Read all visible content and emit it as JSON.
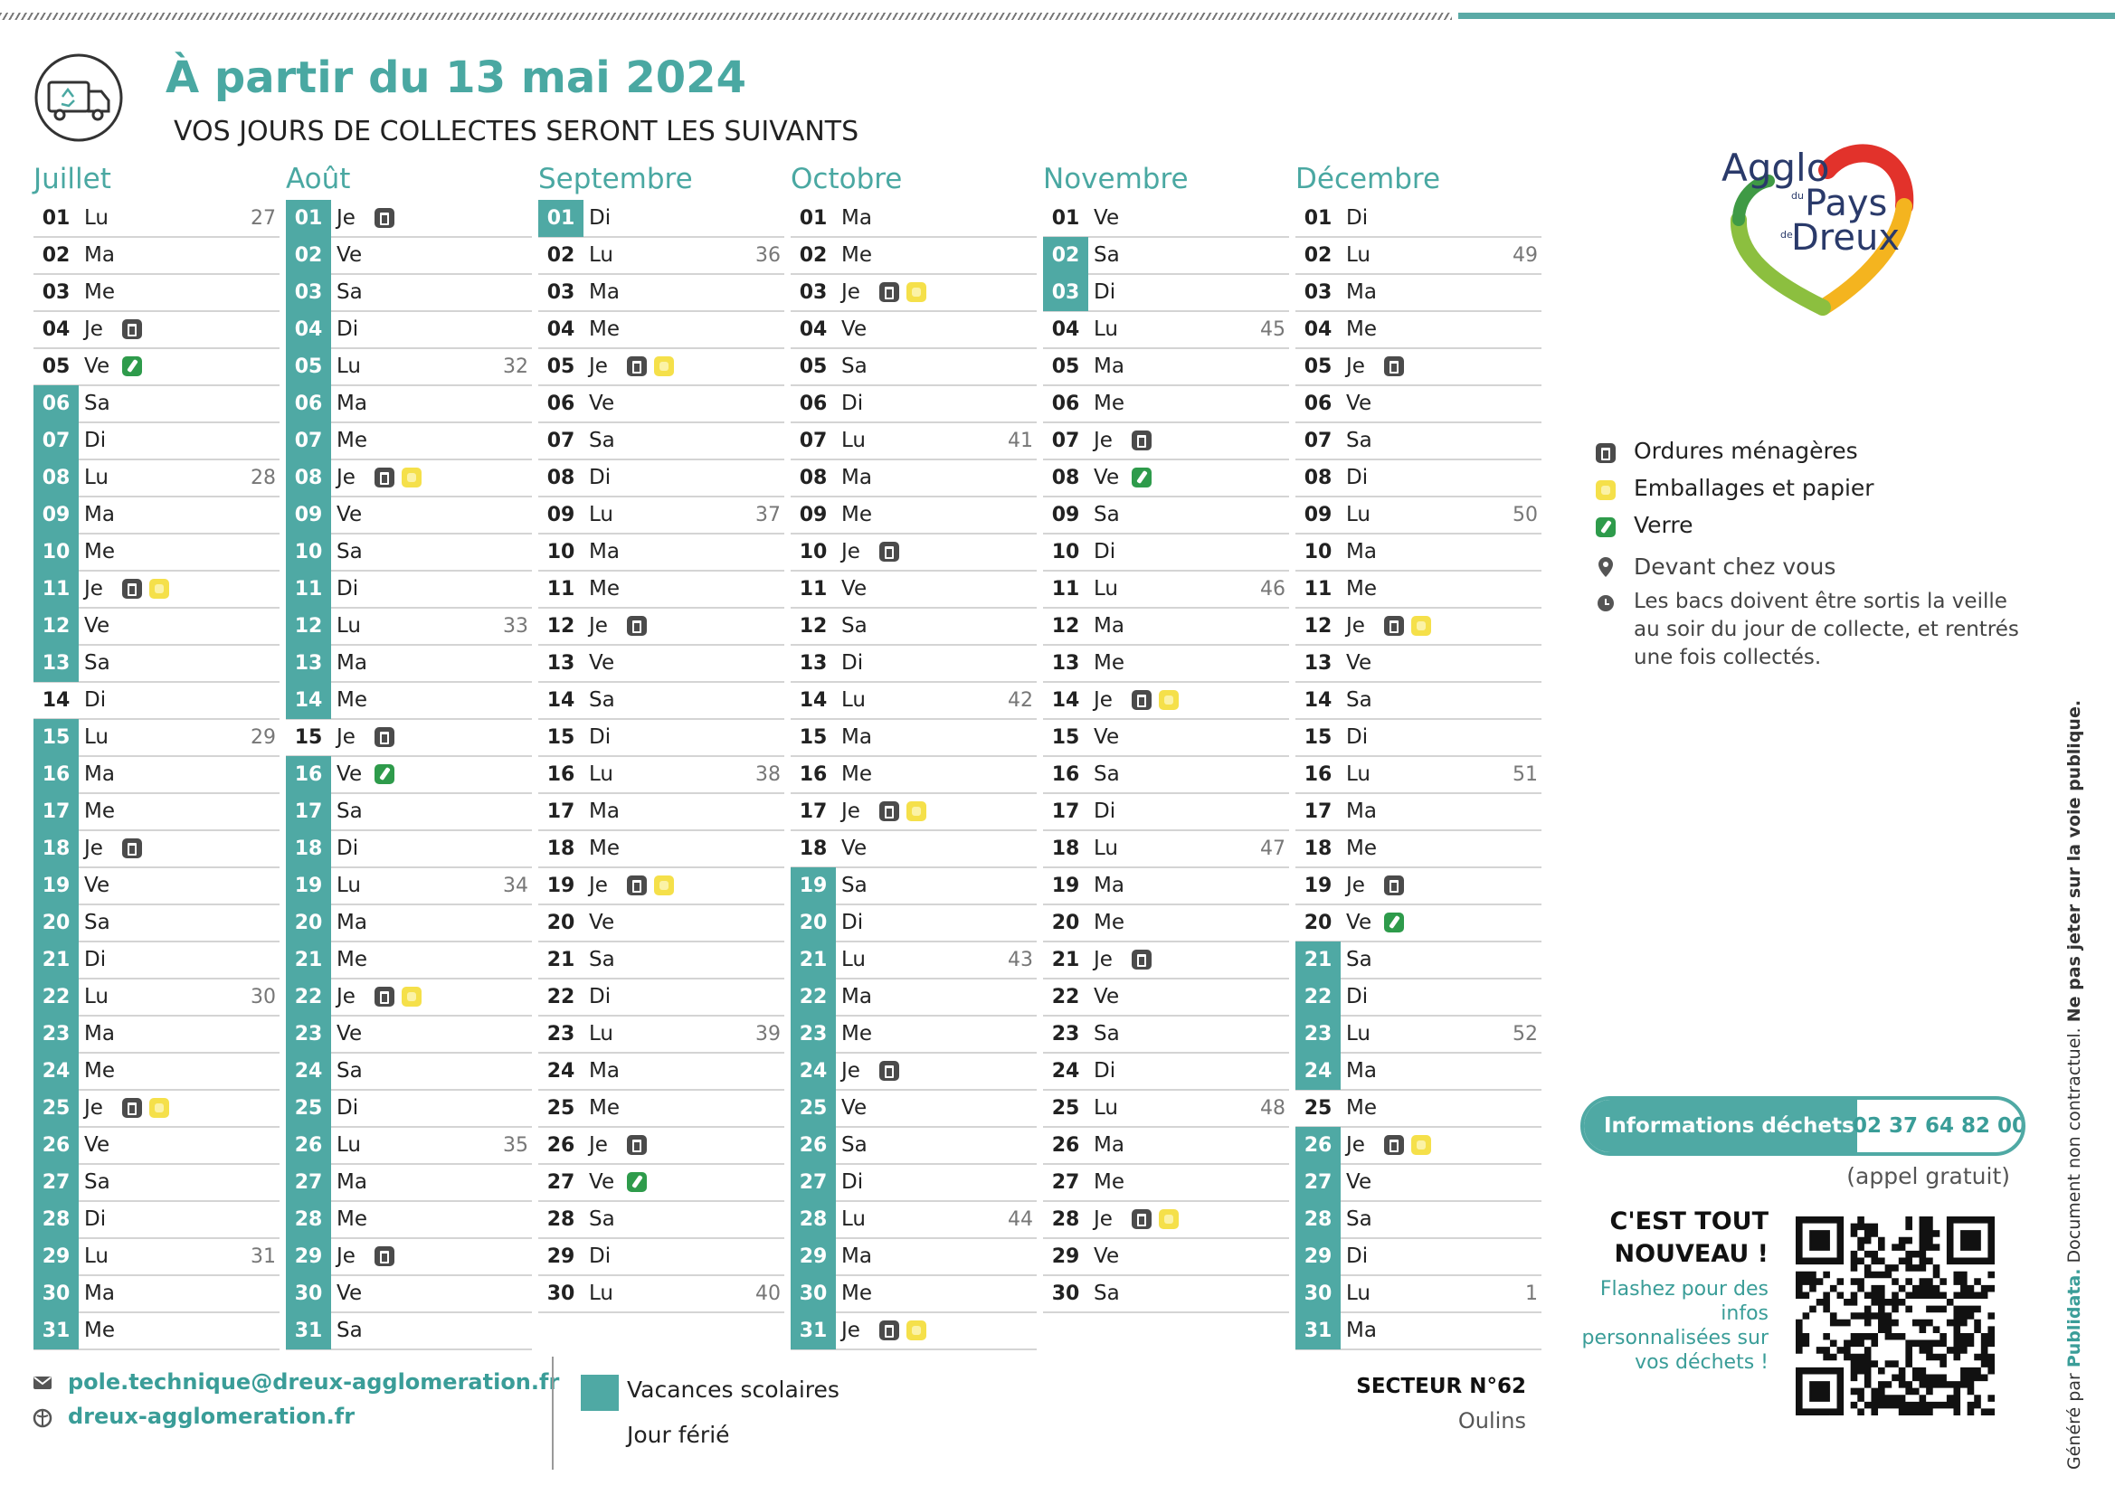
{
  "header": {
    "title": "À partir du 13 mai 2024",
    "subtitle": "VOS JOURS DE COLLECTES SERONT LES SUIVANTS"
  },
  "logo": {
    "agglo": "Agglo",
    "du": "du",
    "pays": "Pays",
    "de": "de",
    "dreux": "Dreux"
  },
  "legend": {
    "items": [
      "Ordures ménagères",
      "Emballages et papier",
      "Verre"
    ],
    "place": "Devant chez vous",
    "note": "Les bacs doivent être sortis la veille au soir du jour de collecte, et rentrés une fois collectés."
  },
  "info": {
    "label": "Informations déchets",
    "phone": "02 37 64 82 00",
    "free": "(appel gratuit)",
    "new": "C'EST TOUT NOUVEAU !",
    "flash": "Flashez pour des infos personnalisées sur vos déchets !"
  },
  "footer": {
    "email": "pole.technique@dreux-agglomeration.fr",
    "web": "dreux-agglomeration.fr",
    "vacances": "Vacances scolaires",
    "ferie": "Jour férié",
    "secteur": "SECTEUR N°62",
    "commune": "Oulins"
  },
  "side": {
    "by": "Généré par",
    "brand": "Publidata.",
    "text": "Document non contractuel.",
    "bold": "Ne pas jeter sur la voie publique."
  },
  "months": [
    {
      "name": "Juillet",
      "days": [
        {
          "n": "01",
          "w": "Lu",
          "wk": 27
        },
        {
          "n": "02",
          "w": "Ma"
        },
        {
          "n": "03",
          "w": "Me"
        },
        {
          "n": "04",
          "w": "Je",
          "c": [
            0
          ]
        },
        {
          "n": "05",
          "w": "Ve",
          "c": [
            2
          ]
        },
        {
          "n": "06",
          "w": "Sa",
          "v": true
        },
        {
          "n": "07",
          "w": "Di",
          "v": true
        },
        {
          "n": "08",
          "w": "Lu",
          "wk": 28,
          "v": true
        },
        {
          "n": "09",
          "w": "Ma",
          "v": true
        },
        {
          "n": "10",
          "w": "Me",
          "v": true
        },
        {
          "n": "11",
          "w": "Je",
          "c": [
            0,
            1
          ],
          "v": true
        },
        {
          "n": "12",
          "w": "Ve",
          "v": true
        },
        {
          "n": "13",
          "w": "Sa",
          "v": true
        },
        {
          "n": "14",
          "w": "Di"
        },
        {
          "n": "15",
          "w": "Lu",
          "wk": 29,
          "v": true
        },
        {
          "n": "16",
          "w": "Ma",
          "v": true
        },
        {
          "n": "17",
          "w": "Me",
          "v": true
        },
        {
          "n": "18",
          "w": "Je",
          "c": [
            0
          ],
          "v": true
        },
        {
          "n": "19",
          "w": "Ve",
          "v": true
        },
        {
          "n": "20",
          "w": "Sa",
          "v": true
        },
        {
          "n": "21",
          "w": "Di",
          "v": true
        },
        {
          "n": "22",
          "w": "Lu",
          "wk": 30,
          "v": true
        },
        {
          "n": "23",
          "w": "Ma",
          "v": true
        },
        {
          "n": "24",
          "w": "Me",
          "v": true
        },
        {
          "n": "25",
          "w": "Je",
          "c": [
            0,
            1
          ],
          "v": true
        },
        {
          "n": "26",
          "w": "Ve",
          "v": true
        },
        {
          "n": "27",
          "w": "Sa",
          "v": true
        },
        {
          "n": "28",
          "w": "Di",
          "v": true
        },
        {
          "n": "29",
          "w": "Lu",
          "wk": 31,
          "v": true
        },
        {
          "n": "30",
          "w": "Ma",
          "v": true
        },
        {
          "n": "31",
          "w": "Me",
          "v": true
        }
      ]
    },
    {
      "name": "Août",
      "days": [
        {
          "n": "01",
          "w": "Je",
          "c": [
            0
          ],
          "v": true
        },
        {
          "n": "02",
          "w": "Ve",
          "v": true
        },
        {
          "n": "03",
          "w": "Sa",
          "v": true
        },
        {
          "n": "04",
          "w": "Di",
          "v": true
        },
        {
          "n": "05",
          "w": "Lu",
          "wk": 32,
          "v": true
        },
        {
          "n": "06",
          "w": "Ma",
          "v": true
        },
        {
          "n": "07",
          "w": "Me",
          "v": true
        },
        {
          "n": "08",
          "w": "Je",
          "c": [
            0,
            1
          ],
          "v": true
        },
        {
          "n": "09",
          "w": "Ve",
          "v": true
        },
        {
          "n": "10",
          "w": "Sa",
          "v": true
        },
        {
          "n": "11",
          "w": "Di",
          "v": true
        },
        {
          "n": "12",
          "w": "Lu",
          "wk": 33,
          "v": true
        },
        {
          "n": "13",
          "w": "Ma",
          "v": true
        },
        {
          "n": "14",
          "w": "Me",
          "v": true
        },
        {
          "n": "15",
          "w": "Je",
          "c": [
            0
          ]
        },
        {
          "n": "16",
          "w": "Ve",
          "c": [
            2
          ],
          "v": true
        },
        {
          "n": "17",
          "w": "Sa",
          "v": true
        },
        {
          "n": "18",
          "w": "Di",
          "v": true
        },
        {
          "n": "19",
          "w": "Lu",
          "wk": 34,
          "v": true
        },
        {
          "n": "20",
          "w": "Ma",
          "v": true
        },
        {
          "n": "21",
          "w": "Me",
          "v": true
        },
        {
          "n": "22",
          "w": "Je",
          "c": [
            0,
            1
          ],
          "v": true
        },
        {
          "n": "23",
          "w": "Ve",
          "v": true
        },
        {
          "n": "24",
          "w": "Sa",
          "v": true
        },
        {
          "n": "25",
          "w": "Di",
          "v": true
        },
        {
          "n": "26",
          "w": "Lu",
          "wk": 35,
          "v": true
        },
        {
          "n": "27",
          "w": "Ma",
          "v": true
        },
        {
          "n": "28",
          "w": "Me",
          "v": true
        },
        {
          "n": "29",
          "w": "Je",
          "c": [
            0
          ],
          "v": true
        },
        {
          "n": "30",
          "w": "Ve",
          "v": true
        },
        {
          "n": "31",
          "w": "Sa",
          "v": true
        }
      ]
    },
    {
      "name": "Septembre",
      "days": [
        {
          "n": "01",
          "w": "Di",
          "v": true
        },
        {
          "n": "02",
          "w": "Lu",
          "wk": 36
        },
        {
          "n": "03",
          "w": "Ma"
        },
        {
          "n": "04",
          "w": "Me"
        },
        {
          "n": "05",
          "w": "Je",
          "c": [
            0,
            1
          ]
        },
        {
          "n": "06",
          "w": "Ve"
        },
        {
          "n": "07",
          "w": "Sa"
        },
        {
          "n": "08",
          "w": "Di"
        },
        {
          "n": "09",
          "w": "Lu",
          "wk": 37
        },
        {
          "n": "10",
          "w": "Ma"
        },
        {
          "n": "11",
          "w": "Me"
        },
        {
          "n": "12",
          "w": "Je",
          "c": [
            0
          ]
        },
        {
          "n": "13",
          "w": "Ve"
        },
        {
          "n": "14",
          "w": "Sa"
        },
        {
          "n": "15",
          "w": "Di"
        },
        {
          "n": "16",
          "w": "Lu",
          "wk": 38
        },
        {
          "n": "17",
          "w": "Ma"
        },
        {
          "n": "18",
          "w": "Me"
        },
        {
          "n": "19",
          "w": "Je",
          "c": [
            0,
            1
          ]
        },
        {
          "n": "20",
          "w": "Ve"
        },
        {
          "n": "21",
          "w": "Sa"
        },
        {
          "n": "22",
          "w": "Di"
        },
        {
          "n": "23",
          "w": "Lu",
          "wk": 39
        },
        {
          "n": "24",
          "w": "Ma"
        },
        {
          "n": "25",
          "w": "Me"
        },
        {
          "n": "26",
          "w": "Je",
          "c": [
            0
          ]
        },
        {
          "n": "27",
          "w": "Ve",
          "c": [
            2
          ]
        },
        {
          "n": "28",
          "w": "Sa"
        },
        {
          "n": "29",
          "w": "Di"
        },
        {
          "n": "30",
          "w": "Lu",
          "wk": 40
        }
      ]
    },
    {
      "name": "Octobre",
      "days": [
        {
          "n": "01",
          "w": "Ma"
        },
        {
          "n": "02",
          "w": "Me"
        },
        {
          "n": "03",
          "w": "Je",
          "c": [
            0,
            1
          ]
        },
        {
          "n": "04",
          "w": "Ve"
        },
        {
          "n": "05",
          "w": "Sa"
        },
        {
          "n": "06",
          "w": "Di"
        },
        {
          "n": "07",
          "w": "Lu",
          "wk": 41
        },
        {
          "n": "08",
          "w": "Ma"
        },
        {
          "n": "09",
          "w": "Me"
        },
        {
          "n": "10",
          "w": "Je",
          "c": [
            0
          ]
        },
        {
          "n": "11",
          "w": "Ve"
        },
        {
          "n": "12",
          "w": "Sa"
        },
        {
          "n": "13",
          "w": "Di"
        },
        {
          "n": "14",
          "w": "Lu",
          "wk": 42
        },
        {
          "n": "15",
          "w": "Ma"
        },
        {
          "n": "16",
          "w": "Me"
        },
        {
          "n": "17",
          "w": "Je",
          "c": [
            0,
            1
          ]
        },
        {
          "n": "18",
          "w": "Ve"
        },
        {
          "n": "19",
          "w": "Sa",
          "v": true
        },
        {
          "n": "20",
          "w": "Di",
          "v": true
        },
        {
          "n": "21",
          "w": "Lu",
          "wk": 43,
          "v": true
        },
        {
          "n": "22",
          "w": "Ma",
          "v": true
        },
        {
          "n": "23",
          "w": "Me",
          "v": true
        },
        {
          "n": "24",
          "w": "Je",
          "c": [
            0
          ],
          "v": true
        },
        {
          "n": "25",
          "w": "Ve",
          "v": true
        },
        {
          "n": "26",
          "w": "Sa",
          "v": true
        },
        {
          "n": "27",
          "w": "Di",
          "v": true
        },
        {
          "n": "28",
          "w": "Lu",
          "wk": 44,
          "v": true
        },
        {
          "n": "29",
          "w": "Ma",
          "v": true
        },
        {
          "n": "30",
          "w": "Me",
          "v": true
        },
        {
          "n": "31",
          "w": "Je",
          "c": [
            0,
            1
          ],
          "v": true
        }
      ]
    },
    {
      "name": "Novembre",
      "days": [
        {
          "n": "01",
          "w": "Ve"
        },
        {
          "n": "02",
          "w": "Sa",
          "v": true
        },
        {
          "n": "03",
          "w": "Di",
          "v": true
        },
        {
          "n": "04",
          "w": "Lu",
          "wk": 45
        },
        {
          "n": "05",
          "w": "Ma"
        },
        {
          "n": "06",
          "w": "Me"
        },
        {
          "n": "07",
          "w": "Je",
          "c": [
            0
          ]
        },
        {
          "n": "08",
          "w": "Ve",
          "c": [
            2
          ]
        },
        {
          "n": "09",
          "w": "Sa"
        },
        {
          "n": "10",
          "w": "Di"
        },
        {
          "n": "11",
          "w": "Lu",
          "wk": 46
        },
        {
          "n": "12",
          "w": "Ma"
        },
        {
          "n": "13",
          "w": "Me"
        },
        {
          "n": "14",
          "w": "Je",
          "c": [
            0,
            1
          ]
        },
        {
          "n": "15",
          "w": "Ve"
        },
        {
          "n": "16",
          "w": "Sa"
        },
        {
          "n": "17",
          "w": "Di"
        },
        {
          "n": "18",
          "w": "Lu",
          "wk": 47
        },
        {
          "n": "19",
          "w": "Ma"
        },
        {
          "n": "20",
          "w": "Me"
        },
        {
          "n": "21",
          "w": "Je",
          "c": [
            0
          ]
        },
        {
          "n": "22",
          "w": "Ve"
        },
        {
          "n": "23",
          "w": "Sa"
        },
        {
          "n": "24",
          "w": "Di"
        },
        {
          "n": "25",
          "w": "Lu",
          "wk": 48
        },
        {
          "n": "26",
          "w": "Ma"
        },
        {
          "n": "27",
          "w": "Me"
        },
        {
          "n": "28",
          "w": "Je",
          "c": [
            0,
            1
          ]
        },
        {
          "n": "29",
          "w": "Ve"
        },
        {
          "n": "30",
          "w": "Sa"
        }
      ]
    },
    {
      "name": "Décembre",
      "days": [
        {
          "n": "01",
          "w": "Di"
        },
        {
          "n": "02",
          "w": "Lu",
          "wk": 49
        },
        {
          "n": "03",
          "w": "Ma"
        },
        {
          "n": "04",
          "w": "Me"
        },
        {
          "n": "05",
          "w": "Je",
          "c": [
            0
          ]
        },
        {
          "n": "06",
          "w": "Ve"
        },
        {
          "n": "07",
          "w": "Sa"
        },
        {
          "n": "08",
          "w": "Di"
        },
        {
          "n": "09",
          "w": "Lu",
          "wk": 50
        },
        {
          "n": "10",
          "w": "Ma"
        },
        {
          "n": "11",
          "w": "Me"
        },
        {
          "n": "12",
          "w": "Je",
          "c": [
            0,
            1
          ]
        },
        {
          "n": "13",
          "w": "Ve"
        },
        {
          "n": "14",
          "w": "Sa"
        },
        {
          "n": "15",
          "w": "Di"
        },
        {
          "n": "16",
          "w": "Lu",
          "wk": 51
        },
        {
          "n": "17",
          "w": "Ma"
        },
        {
          "n": "18",
          "w": "Me"
        },
        {
          "n": "19",
          "w": "Je",
          "c": [
            0
          ]
        },
        {
          "n": "20",
          "w": "Ve",
          "c": [
            2
          ]
        },
        {
          "n": "21",
          "w": "Sa",
          "v": true
        },
        {
          "n": "22",
          "w": "Di",
          "v": true
        },
        {
          "n": "23",
          "w": "Lu",
          "wk": 52,
          "v": true
        },
        {
          "n": "24",
          "w": "Ma",
          "v": true
        },
        {
          "n": "25",
          "w": "Me"
        },
        {
          "n": "26",
          "w": "Je",
          "c": [
            0,
            1
          ],
          "v": true
        },
        {
          "n": "27",
          "w": "Ve",
          "v": true
        },
        {
          "n": "28",
          "w": "Sa",
          "v": true
        },
        {
          "n": "29",
          "w": "Di",
          "v": true
        },
        {
          "n": "30",
          "w": "Lu",
          "wk": 1,
          "v": true
        },
        {
          "n": "31",
          "w": "Ma",
          "v": true
        }
      ]
    }
  ]
}
